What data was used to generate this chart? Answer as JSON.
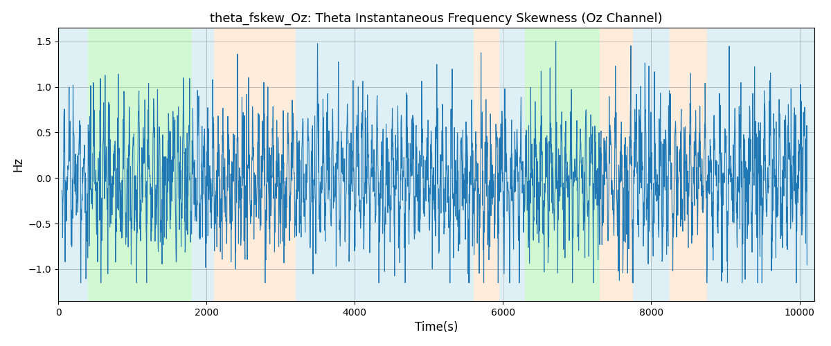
{
  "title": "theta_fskew_Oz: Theta Instantaneous Frequency Skewness (Oz Channel)",
  "xlabel": "Time(s)",
  "ylabel": "Hz",
  "xlim": [
    0,
    10200
  ],
  "ylim": [
    -1.35,
    1.65
  ],
  "line_color": "#1f77b4",
  "line_width": 0.8,
  "bg_bands": [
    {
      "xmin": 0,
      "xmax": 400,
      "color": "#add8e6",
      "alpha": 0.4
    },
    {
      "xmin": 400,
      "xmax": 1800,
      "color": "#90ee90",
      "alpha": 0.4
    },
    {
      "xmin": 1800,
      "xmax": 2100,
      "color": "#add8e6",
      "alpha": 0.4
    },
    {
      "xmin": 2100,
      "xmax": 3200,
      "color": "#ffdab9",
      "alpha": 0.5
    },
    {
      "xmin": 3200,
      "xmax": 3700,
      "color": "#add8e6",
      "alpha": 0.4
    },
    {
      "xmin": 3700,
      "xmax": 5500,
      "color": "#add8e6",
      "alpha": 0.4
    },
    {
      "xmin": 5500,
      "xmax": 5900,
      "color": "#ffdab9",
      "alpha": 0.5
    },
    {
      "xmin": 5900,
      "xmax": 6200,
      "color": "#add8e6",
      "alpha": 0.4
    },
    {
      "xmin": 6150,
      "xmax": 6250,
      "color": "#add8e6",
      "alpha": 0.4
    },
    {
      "xmin": 6200,
      "xmax": 7200,
      "color": "#90ee90",
      "alpha": 0.4
    },
    {
      "xmin": 7200,
      "xmax": 7700,
      "color": "#ffdab9",
      "alpha": 0.5
    },
    {
      "xmin": 7700,
      "xmax": 8200,
      "color": "#add8e6",
      "alpha": 0.4
    },
    {
      "xmin": 8200,
      "xmax": 8700,
      "color": "#ffdab9",
      "alpha": 0.5
    },
    {
      "xmin": 8700,
      "xmax": 10200,
      "color": "#add8e6",
      "alpha": 0.4
    }
  ],
  "yticks": [
    -1.0,
    -0.5,
    0.0,
    0.5,
    1.0,
    1.5
  ],
  "xticks": [
    0,
    2000,
    4000,
    6000,
    8000,
    10000
  ],
  "seed": 42,
  "n_points": 3000,
  "x_start": 50,
  "x_end": 10100
}
